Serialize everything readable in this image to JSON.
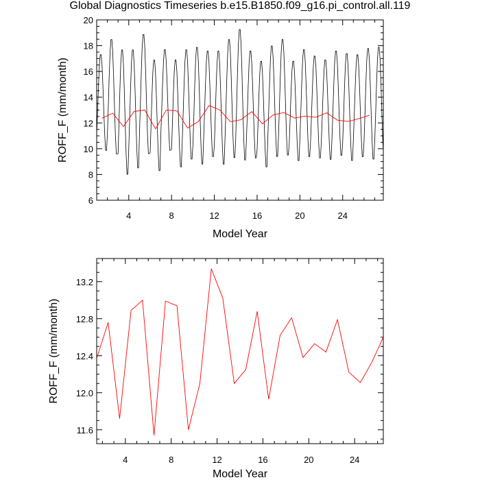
{
  "title": "Global Diagnostics Timeseries b.e15.B1850.f09_g16.pi_control.all.119",
  "colors": {
    "monthly_line": "#000000",
    "annual_line": "#ff0000",
    "axis": "#000000",
    "background": "#ffffff"
  },
  "chart_data": [
    {
      "type": "line",
      "xlabel": "Model Year",
      "ylabel": "ROFF_F (mm/month)",
      "xlim": [
        1,
        27.8
      ],
      "ylim": [
        6,
        20
      ],
      "xticks": [
        4,
        8,
        12,
        16,
        20,
        24
      ],
      "yticks": [
        6,
        8,
        10,
        12,
        14,
        16,
        18,
        20
      ],
      "grid": false,
      "series": [
        {
          "style": "monthly",
          "color": "#000000",
          "peaks": [
            17.4,
            18.6,
            17.8,
            17.8,
            19.0,
            17.0,
            17.8,
            17.0,
            17.8,
            18.0,
            17.7,
            17.7,
            18.6,
            19.4,
            17.7,
            16.9,
            18.1,
            18.6,
            16.9,
            17.8,
            17.3,
            17.0,
            17.7,
            17.5,
            17.4,
            17.9,
            18.0
          ],
          "troughs": [
            9.7,
            9.4,
            7.8,
            8.3,
            9.4,
            8.1,
            9.7,
            8.4,
            9.0,
            8.6,
            9.2,
            8.6,
            9.1,
            8.9,
            9.1,
            8.4,
            9.2,
            9.3,
            8.9,
            9.2,
            9.1,
            9.0,
            9.3,
            8.9,
            9.2,
            9.0,
            9.0
          ]
        },
        {
          "style": "annual",
          "color": "#ff0000",
          "x": [
            1.5,
            2.5,
            3.5,
            4.5,
            5.5,
            6.5,
            7.5,
            8.5,
            9.5,
            10.5,
            11.5,
            12.5,
            13.5,
            14.5,
            15.5,
            16.5,
            17.5,
            18.5,
            19.5,
            20.5,
            21.5,
            22.5,
            23.5,
            24.5,
            25.5,
            26.5
          ],
          "values": [
            12.37,
            12.76,
            11.72,
            12.89,
            13.0,
            11.54,
            12.99,
            12.94,
            11.6,
            12.1,
            13.34,
            13.02,
            12.1,
            12.25,
            12.88,
            11.93,
            12.62,
            12.81,
            12.38,
            12.53,
            12.44,
            12.79,
            12.22,
            12.11,
            12.33,
            12.6
          ]
        }
      ]
    },
    {
      "type": "line",
      "xlabel": "Model Year",
      "ylabel": "ROFF_F (mm/month)",
      "xlim": [
        1.5,
        26.5
      ],
      "ylim": [
        11.45,
        13.45
      ],
      "xticks": [
        4,
        8,
        12,
        16,
        20,
        24
      ],
      "yticks": [
        11.6,
        12.0,
        12.4,
        12.8,
        13.2
      ],
      "ytick_labels": [
        "11.6",
        "12.0",
        "12.4",
        "12.8",
        "13.2"
      ],
      "grid": false,
      "series": [
        {
          "style": "annual",
          "color": "#ff0000",
          "x": [
            1.5,
            2.5,
            3.5,
            4.5,
            5.5,
            6.5,
            7.5,
            8.5,
            9.5,
            10.5,
            11.5,
            12.5,
            13.5,
            14.5,
            15.5,
            16.5,
            17.5,
            18.5,
            19.5,
            20.5,
            21.5,
            22.5,
            23.5,
            24.5,
            25.5,
            26.5
          ],
          "values": [
            12.37,
            12.76,
            11.72,
            12.89,
            13.0,
            11.54,
            12.99,
            12.94,
            11.6,
            12.1,
            13.34,
            13.02,
            12.1,
            12.25,
            12.88,
            11.93,
            12.62,
            12.81,
            12.38,
            12.53,
            12.44,
            12.79,
            12.22,
            12.11,
            12.33,
            12.6
          ]
        }
      ]
    }
  ]
}
